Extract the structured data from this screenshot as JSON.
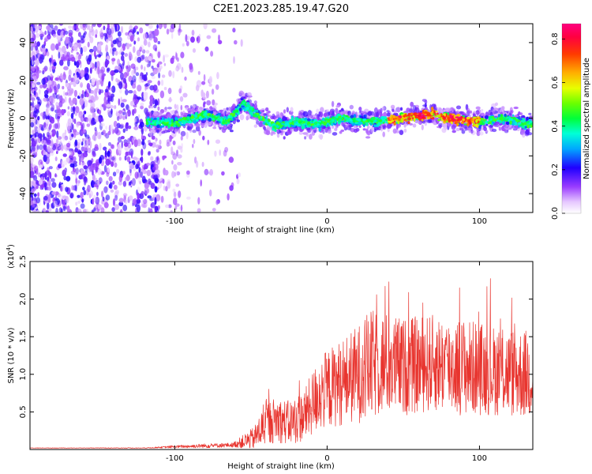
{
  "figure_title": "C2E1.2023.285.19.47.G20",
  "colors": {
    "line": "#e8342e",
    "axis": "#000000",
    "background": "#ffffff"
  },
  "chart_data": [
    {
      "type": "heatmap",
      "name": "spectrogram",
      "title": "C2E1.2023.285.19.47.G20",
      "xlabel": "Height of straight line (km)",
      "ylabel": "Frequency (Hz)",
      "xlim": [
        -195,
        135
      ],
      "ylim": [
        -50,
        50
      ],
      "xticks": [
        -100,
        0,
        100
      ],
      "yticks": [
        -40,
        -20,
        0,
        20,
        40
      ],
      "description_track": {
        "x": [
          -115,
          -100,
          -80,
          -65,
          -55,
          -45,
          -35,
          -20,
          -5,
          10,
          25,
          40,
          55,
          70,
          85,
          100,
          115,
          130
        ],
        "center_hz": [
          -2,
          -3,
          2,
          -2,
          8,
          1,
          -4,
          -2,
          -3,
          0,
          -2,
          -1,
          1,
          2,
          -1,
          -2,
          0,
          -3
        ]
      },
      "colorbar": {
        "label": "Normalized spectral amplitude",
        "range": [
          0.0,
          0.87
        ],
        "ticks": [
          "0.0",
          "0.2",
          "0.4",
          "0.6",
          "0.8"
        ],
        "tick_values": [
          0.0,
          0.2,
          0.4,
          0.6,
          0.8
        ]
      }
    },
    {
      "type": "line",
      "name": "snr",
      "xlabel": "Height of straight line (km)",
      "ylabel": "SNR (10 * v/v)",
      "y_multiplier": "(x10",
      "y_multiplier_exp": "4",
      "y_multiplier_close": ")",
      "xlim": [
        -195,
        135
      ],
      "ylim": [
        0.0,
        2.5
      ],
      "xticks": [
        -100,
        0,
        100
      ],
      "yticks": [
        0.5,
        1.0,
        1.5,
        2.0,
        2.5
      ],
      "ytick_labels": [
        "0.5",
        "1.0",
        "1.5",
        "2.0",
        "2.5"
      ],
      "envelope": {
        "x": [
          -195,
          -120,
          -95,
          -80,
          -62,
          -48,
          -40,
          -33,
          -25,
          -15,
          -5,
          5,
          20,
          28,
          35,
          50,
          70,
          90,
          110,
          130
        ],
        "mid": [
          0.02,
          0.02,
          0.04,
          0.05,
          0.06,
          0.15,
          0.35,
          0.4,
          0.35,
          0.45,
          0.75,
          0.85,
          1.0,
          1.1,
          1.15,
          1.1,
          1.15,
          1.1,
          1.05,
          1.0
        ],
        "amp": [
          0.003,
          0.004,
          0.02,
          0.03,
          0.03,
          0.15,
          0.3,
          0.3,
          0.3,
          0.35,
          0.5,
          0.55,
          0.65,
          0.75,
          0.7,
          0.65,
          0.65,
          0.65,
          0.6,
          0.6
        ]
      }
    }
  ]
}
